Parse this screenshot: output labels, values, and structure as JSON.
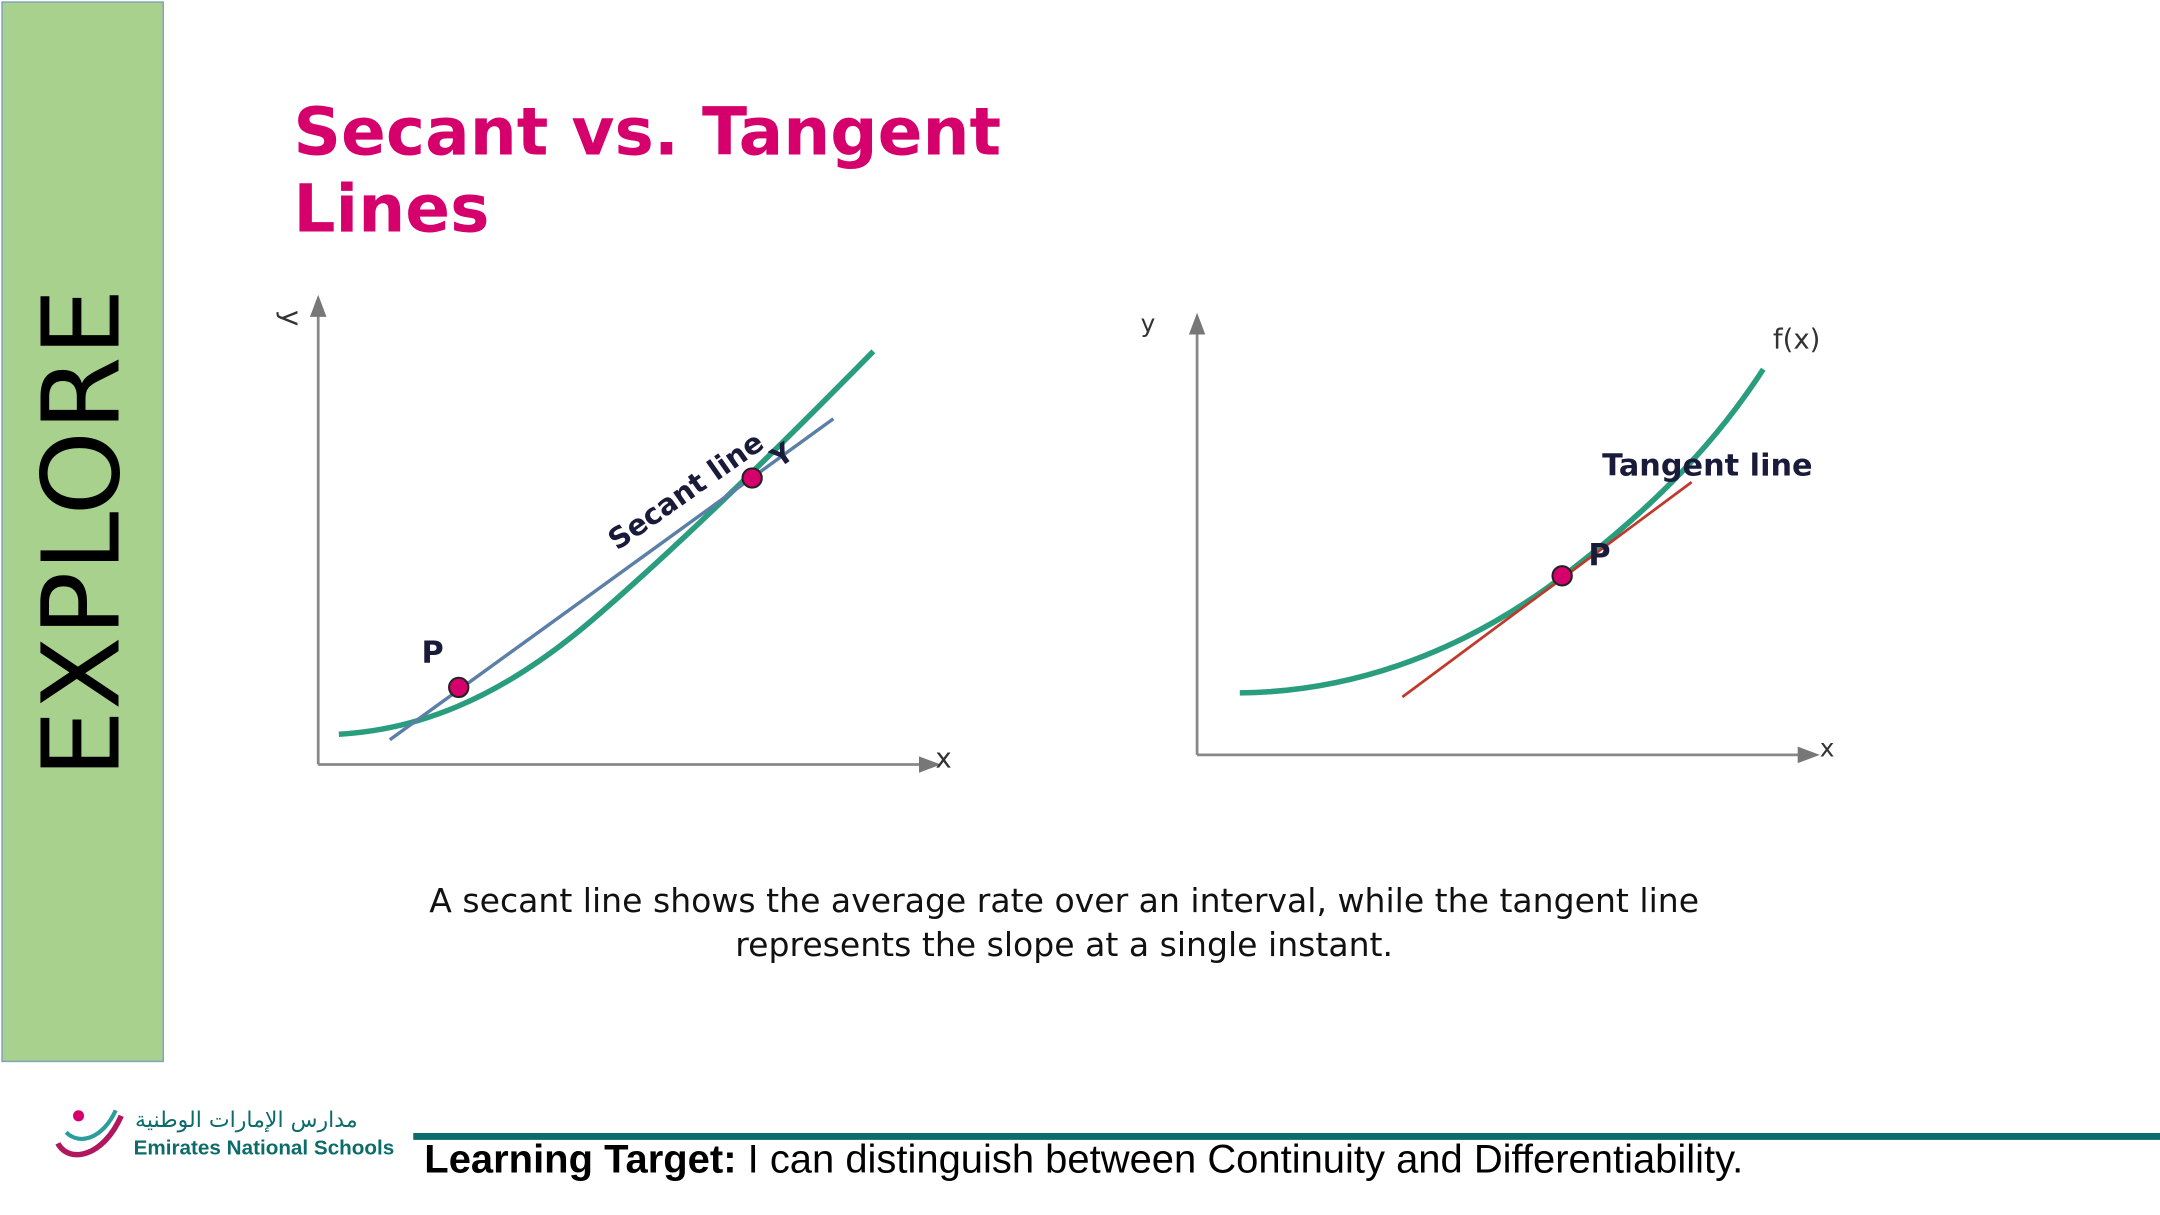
{
  "sidebar": {
    "label": "EXPLORE"
  },
  "header": {
    "title": "Secant vs. Tangent Lines"
  },
  "figures": [
    {
      "y_axis": "y",
      "x_axis": "x",
      "point_p": "P",
      "point_y": "Y",
      "line_label": "Secant line"
    },
    {
      "y_axis": "y",
      "x_axis": "x",
      "function_label": "f(x)",
      "line_label": "Tangent line",
      "point_p": "P"
    }
  ],
  "caption": "A secant line shows the average rate over an interval, while the tangent line represents the slope at a single instant.",
  "footer": {
    "logo_arabic": "مدارس الإمارات الوطنية",
    "logo_english": "Emirates National Schools",
    "target_label": "Learning Target:",
    "target_text": " I can distinguish between Continuity and Differentiability."
  }
}
